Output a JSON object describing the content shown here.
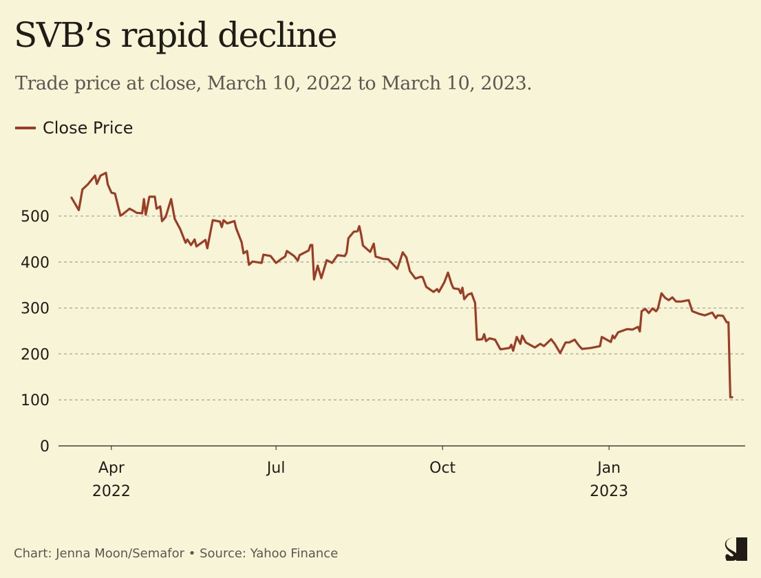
{
  "title": "SVB’s rapid decline",
  "subtitle": "Trade price at close, March 10, 2022 to March 10, 2023.",
  "footer": "Chart: Jenna Moon/Semafor • Source: Yahoo Finance",
  "logo_text": "S",
  "chart_data": {
    "type": "line",
    "title": "SVB’s rapid decline",
    "xlabel": "",
    "ylabel": "",
    "ylim": [
      0,
      600
    ],
    "yticks": [
      0,
      100,
      200,
      300,
      400,
      500
    ],
    "ytick_labels": [
      "0",
      "100",
      "200",
      "300",
      "400",
      "500"
    ],
    "xlim": [
      "2022-03-10",
      "2023-03-10"
    ],
    "xticks": [
      {
        "date": "2022-04-01",
        "label": "Apr",
        "year": "2022"
      },
      {
        "date": "2022-07-01",
        "label": "Jul",
        "year": ""
      },
      {
        "date": "2022-10-01",
        "label": "Oct",
        "year": ""
      },
      {
        "date": "2023-01-01",
        "label": "Jan",
        "year": "2023"
      }
    ],
    "grid": "horizontal dashed",
    "legend_position": "top-left",
    "series": [
      {
        "name": "Close Price",
        "color": "#9b3d24",
        "points": [
          [
            "2022-03-10",
            540
          ],
          [
            "2022-03-14",
            513
          ],
          [
            "2022-03-16",
            558
          ],
          [
            "2022-03-19",
            569
          ],
          [
            "2022-03-23",
            588
          ],
          [
            "2022-03-24",
            570
          ],
          [
            "2022-03-26",
            588
          ],
          [
            "2022-03-29",
            594
          ],
          [
            "2022-03-30",
            569
          ],
          [
            "2022-04-01",
            551
          ],
          [
            "2022-04-03",
            549
          ],
          [
            "2022-04-06",
            501
          ],
          [
            "2022-04-07",
            503
          ],
          [
            "2022-04-11",
            516
          ],
          [
            "2022-04-13",
            512
          ],
          [
            "2022-04-15",
            507
          ],
          [
            "2022-04-18",
            506
          ],
          [
            "2022-04-19",
            537
          ],
          [
            "2022-04-20",
            503
          ],
          [
            "2022-04-22",
            542
          ],
          [
            "2022-04-25",
            542
          ],
          [
            "2022-04-26",
            516
          ],
          [
            "2022-04-28",
            521
          ],
          [
            "2022-04-29",
            489
          ],
          [
            "2022-05-01",
            498
          ],
          [
            "2022-05-04",
            537
          ],
          [
            "2022-05-06",
            494
          ],
          [
            "2022-05-09",
            472
          ],
          [
            "2022-05-12",
            442
          ],
          [
            "2022-05-13",
            449
          ],
          [
            "2022-05-15",
            437
          ],
          [
            "2022-05-17",
            449
          ],
          [
            "2022-05-18",
            434
          ],
          [
            "2022-05-23",
            448
          ],
          [
            "2022-05-24",
            430
          ],
          [
            "2022-05-27",
            491
          ],
          [
            "2022-05-31",
            488
          ],
          [
            "2022-06-01",
            476
          ],
          [
            "2022-06-02",
            491
          ],
          [
            "2022-06-04",
            484
          ],
          [
            "2022-06-08",
            489
          ],
          [
            "2022-06-09",
            473
          ],
          [
            "2022-06-12",
            443
          ],
          [
            "2022-06-13",
            419
          ],
          [
            "2022-06-15",
            424
          ],
          [
            "2022-06-16",
            394
          ],
          [
            "2022-06-18",
            401
          ],
          [
            "2022-06-23",
            398
          ],
          [
            "2022-06-24",
            416
          ],
          [
            "2022-06-28",
            413
          ],
          [
            "2022-07-01",
            398
          ],
          [
            "2022-07-04",
            407
          ],
          [
            "2022-07-06",
            412
          ],
          [
            "2022-07-07",
            424
          ],
          [
            "2022-07-11",
            413
          ],
          [
            "2022-07-13",
            403
          ],
          [
            "2022-07-14",
            415
          ],
          [
            "2022-07-19",
            425
          ],
          [
            "2022-07-20",
            437
          ],
          [
            "2022-07-21",
            437
          ],
          [
            "2022-07-22",
            362
          ],
          [
            "2022-07-24",
            392
          ],
          [
            "2022-07-26",
            365
          ],
          [
            "2022-07-29",
            404
          ],
          [
            "2022-08-01",
            398
          ],
          [
            "2022-08-04",
            415
          ],
          [
            "2022-08-08",
            413
          ],
          [
            "2022-08-09",
            421
          ],
          [
            "2022-08-10",
            452
          ],
          [
            "2022-08-13",
            466
          ],
          [
            "2022-08-15",
            467
          ],
          [
            "2022-08-16",
            478
          ],
          [
            "2022-08-17",
            460
          ],
          [
            "2022-08-18",
            436
          ],
          [
            "2022-08-22",
            422
          ],
          [
            "2022-08-24",
            440
          ],
          [
            "2022-08-25",
            412
          ],
          [
            "2022-08-29",
            407
          ],
          [
            "2022-09-01",
            406
          ],
          [
            "2022-09-06",
            385
          ],
          [
            "2022-09-09",
            421
          ],
          [
            "2022-09-11",
            410
          ],
          [
            "2022-09-13",
            380
          ],
          [
            "2022-09-16",
            364
          ],
          [
            "2022-09-19",
            368
          ],
          [
            "2022-09-20",
            367
          ],
          [
            "2022-09-22",
            346
          ],
          [
            "2022-09-26",
            335
          ],
          [
            "2022-09-28",
            341
          ],
          [
            "2022-09-29",
            335
          ],
          [
            "2022-10-02",
            356
          ],
          [
            "2022-10-04",
            377
          ],
          [
            "2022-10-06",
            352
          ],
          [
            "2022-10-07",
            343
          ],
          [
            "2022-10-10",
            341
          ],
          [
            "2022-10-11",
            332
          ],
          [
            "2022-10-12",
            344
          ],
          [
            "2022-10-13",
            319
          ],
          [
            "2022-10-15",
            329
          ],
          [
            "2022-10-17",
            332
          ],
          [
            "2022-10-19",
            311
          ],
          [
            "2022-10-20",
            231
          ],
          [
            "2022-10-23",
            232
          ],
          [
            "2022-10-24",
            243
          ],
          [
            "2022-10-25",
            228
          ],
          [
            "2022-10-27",
            234
          ],
          [
            "2022-10-30",
            231
          ],
          [
            "2022-11-02",
            210
          ],
          [
            "2022-11-07",
            213
          ],
          [
            "2022-11-08",
            220
          ],
          [
            "2022-11-09",
            207
          ],
          [
            "2022-11-11",
            237
          ],
          [
            "2022-11-13",
            222
          ],
          [
            "2022-11-14",
            240
          ],
          [
            "2022-11-16",
            225
          ],
          [
            "2022-11-21",
            214
          ],
          [
            "2022-11-24",
            222
          ],
          [
            "2022-11-26",
            217
          ],
          [
            "2022-11-30",
            232
          ],
          [
            "2022-12-02",
            222
          ],
          [
            "2022-12-05",
            202
          ],
          [
            "2022-12-08",
            225
          ],
          [
            "2022-12-10",
            225
          ],
          [
            "2022-12-13",
            231
          ],
          [
            "2022-12-15",
            220
          ],
          [
            "2022-12-17",
            211
          ],
          [
            "2022-12-22",
            213
          ],
          [
            "2022-12-27",
            217
          ],
          [
            "2022-12-28",
            237
          ],
          [
            "2023-01-02",
            226
          ],
          [
            "2023-01-03",
            240
          ],
          [
            "2023-01-04",
            234
          ],
          [
            "2023-01-06",
            247
          ],
          [
            "2023-01-11",
            254
          ],
          [
            "2023-01-14",
            253
          ],
          [
            "2023-01-17",
            259
          ],
          [
            "2023-01-18",
            249
          ],
          [
            "2023-01-19",
            293
          ],
          [
            "2023-01-21",
            298
          ],
          [
            "2023-01-23",
            289
          ],
          [
            "2023-01-25",
            299
          ],
          [
            "2023-01-27",
            293
          ],
          [
            "2023-01-28",
            299
          ],
          [
            "2023-01-30",
            332
          ],
          [
            "2023-02-01",
            322
          ],
          [
            "2023-02-03",
            317
          ],
          [
            "2023-02-05",
            323
          ],
          [
            "2023-02-07",
            314
          ],
          [
            "2023-02-10",
            314
          ],
          [
            "2023-02-14",
            317
          ],
          [
            "2023-02-16",
            293
          ],
          [
            "2023-02-20",
            287
          ],
          [
            "2023-02-23",
            284
          ],
          [
            "2023-02-27",
            290
          ],
          [
            "2023-03-01",
            278
          ],
          [
            "2023-03-02",
            284
          ],
          [
            "2023-03-05",
            283
          ],
          [
            "2023-03-07",
            269
          ],
          [
            "2023-03-08",
            269
          ],
          [
            "2023-03-09",
            106
          ],
          [
            "2023-03-10",
            106
          ]
        ]
      }
    ]
  }
}
